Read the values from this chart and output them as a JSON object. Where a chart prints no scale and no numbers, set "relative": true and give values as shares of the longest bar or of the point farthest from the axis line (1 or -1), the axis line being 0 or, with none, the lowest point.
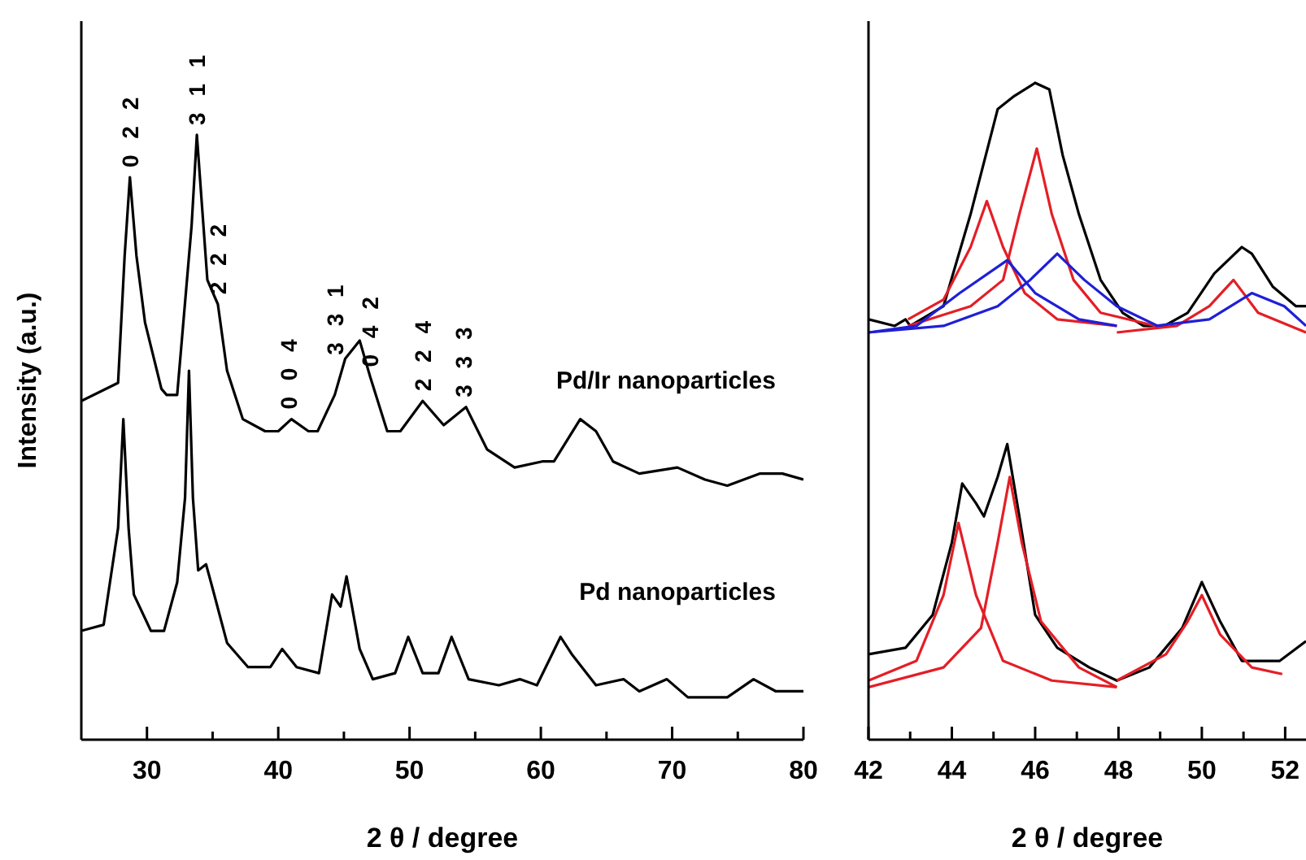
{
  "chart_data": [
    {
      "type": "line",
      "relative": true,
      "xlabel": "2 θ / degree",
      "ylabel": "Intensity (a.u.)",
      "marker": "none",
      "xlim": [
        25,
        80
      ],
      "xticks": [
        30,
        {
          "value": 35,
          "label": null
        },
        40,
        {
          "value": 45,
          "label": null
        },
        50,
        {
          "value": 55,
          "label": null
        },
        60,
        {
          "value": 65,
          "label": null
        },
        70,
        {
          "value": 75,
          "label": null
        },
        80
      ],
      "series": [
        {
          "name": "Pd/Ir nanoparticles",
          "color": "#000000",
          "x": [
            25,
            27.8,
            28.3,
            28.7,
            29.2,
            29.85,
            31.1,
            31.5,
            32.3,
            33.4,
            33.8,
            34.6,
            35.4,
            36.1,
            37.3,
            39.0,
            40.0,
            41.0,
            42.3,
            43.0,
            44.3,
            45.1,
            46.2,
            47.0,
            48.3,
            49.3,
            51.0,
            52.6,
            54.3,
            55.9,
            58.0,
            60.1,
            61.0,
            63.0,
            64.2,
            65.5,
            67.5,
            70.4,
            72.5,
            74.2,
            76.7,
            78.4,
            80
          ],
          "values": [
            0.56,
            0.59,
            0.8,
            0.93,
            0.8,
            0.69,
            0.58,
            0.57,
            0.57,
            0.85,
            1.0,
            0.76,
            0.72,
            0.61,
            0.53,
            0.51,
            0.51,
            0.53,
            0.51,
            0.51,
            0.57,
            0.63,
            0.66,
            0.6,
            0.51,
            0.51,
            0.56,
            0.52,
            0.55,
            0.48,
            0.45,
            0.46,
            0.46,
            0.53,
            0.51,
            0.46,
            0.44,
            0.45,
            0.43,
            0.42,
            0.44,
            0.44,
            0.43
          ]
        },
        {
          "name": "Pd nanoparticles",
          "color": "#000000",
          "x": [
            25,
            26.7,
            27.8,
            28.2,
            28.6,
            29.0,
            30.3,
            31.3,
            32.3,
            32.9,
            33.2,
            33.5,
            33.9,
            34.5,
            35.0,
            36.1,
            37.7,
            39.4,
            40.3,
            41.4,
            43.1,
            44.1,
            44.75,
            45.2,
            46.2,
            47.2,
            48.9,
            49.9,
            51.0,
            52.2,
            53.2,
            54.5,
            56.8,
            58.4,
            59.7,
            61.5,
            62.4,
            64.2,
            66.3,
            67.5,
            69.6,
            71.2,
            74.2,
            76.2,
            77.9,
            80
          ],
          "values": [
            0.18,
            0.19,
            0.35,
            0.53,
            0.35,
            0.24,
            0.18,
            0.18,
            0.26,
            0.4,
            0.61,
            0.4,
            0.28,
            0.29,
            0.25,
            0.16,
            0.12,
            0.12,
            0.15,
            0.12,
            0.11,
            0.24,
            0.22,
            0.27,
            0.15,
            0.1,
            0.11,
            0.17,
            0.11,
            0.11,
            0.17,
            0.1,
            0.09,
            0.1,
            0.09,
            0.17,
            0.14,
            0.09,
            0.1,
            0.08,
            0.1,
            0.07,
            0.07,
            0.1,
            0.08,
            0.08
          ]
        }
      ],
      "annotations": [
        {
          "text": "0 2 2",
          "x": 28.7,
          "y": 0.93
        },
        {
          "text": "3 1 1",
          "x": 33.8,
          "y": 1.0
        },
        {
          "text": "2 2 2",
          "x": 35.4,
          "y": 0.72
        },
        {
          "text": "0 0 4",
          "x": 40.8,
          "y": 0.53
        },
        {
          "text": "3 3 1",
          "x": 44.3,
          "y": 0.62
        },
        {
          "text": "0 4 2",
          "x": 47.0,
          "y": 0.6
        },
        {
          "text": "2 2 4",
          "x": 51.0,
          "y": 0.56
        },
        {
          "text": "3 3 3",
          "x": 54.1,
          "y": 0.55
        }
      ]
    },
    {
      "type": "line",
      "relative": true,
      "xlabel": "2 θ / degree",
      "marker": "none",
      "xlim": [
        42,
        52.5
      ],
      "xticks": [
        42,
        {
          "value": 43,
          "label": null
        },
        44,
        {
          "value": 45,
          "label": null
        },
        46,
        {
          "value": 47,
          "label": null
        },
        48,
        {
          "value": 49,
          "label": null
        },
        50,
        {
          "value": 51,
          "label": null
        },
        52
      ],
      "series": [
        {
          "color": "#000000",
          "x": [
            42.0,
            42.63,
            42.89,
            43.0,
            43.8,
            44.45,
            45.1,
            45.5,
            46.0,
            46.34,
            46.66,
            47.05,
            47.57,
            48.1,
            48.6,
            49.1,
            49.66,
            50.3,
            50.96,
            51.2,
            51.7,
            52.26,
            52.5
          ],
          "values": [
            0.64,
            0.63,
            0.64,
            0.63,
            0.66,
            0.8,
            0.96,
            0.98,
            1.0,
            0.99,
            0.89,
            0.8,
            0.7,
            0.65,
            0.63,
            0.63,
            0.65,
            0.71,
            0.75,
            0.74,
            0.69,
            0.66,
            0.66
          ]
        },
        {
          "color": "#e41e26",
          "x": [
            42.95,
            43.8,
            44.45,
            44.84,
            45.23,
            45.75,
            46.53,
            47.96
          ],
          "values": [
            0.64,
            0.67,
            0.75,
            0.82,
            0.75,
            0.68,
            0.64,
            0.63
          ]
        },
        {
          "color": "#e41e26",
          "x": [
            42.95,
            44.45,
            45.23,
            45.62,
            46.04,
            46.4,
            46.92,
            47.57,
            48.9
          ],
          "values": [
            0.63,
            0.66,
            0.7,
            0.8,
            0.9,
            0.8,
            0.7,
            0.65,
            0.63
          ]
        },
        {
          "color": "#1f1fd6",
          "x": [
            42.0,
            43.15,
            44.19,
            45.33,
            46.0,
            47.05,
            47.96
          ],
          "values": [
            0.62,
            0.63,
            0.68,
            0.73,
            0.68,
            0.64,
            0.63
          ]
        },
        {
          "color": "#1f1fd6",
          "x": [
            42.0,
            43.8,
            45.1,
            45.88,
            46.53,
            47.18,
            47.96,
            48.94
          ],
          "values": [
            0.62,
            0.63,
            0.66,
            0.7,
            0.74,
            0.7,
            0.66,
            0.63
          ]
        },
        {
          "color": "#e41e26",
          "x": [
            47.96,
            49.4,
            50.18,
            50.76,
            51.35,
            52.5
          ],
          "values": [
            0.62,
            0.63,
            0.66,
            0.7,
            0.65,
            0.62
          ]
        },
        {
          "color": "#1f1fd6",
          "x": [
            48.9,
            50.18,
            51.2,
            51.98,
            52.5
          ],
          "values": [
            0.63,
            0.64,
            0.68,
            0.66,
            0.63
          ]
        },
        {
          "color": "#000000",
          "x": [
            42.0,
            42.89,
            43.54,
            44.0,
            44.25,
            44.58,
            44.77,
            45.1,
            45.33,
            45.62,
            46.0,
            46.53,
            47.3,
            47.96,
            48.74,
            49.53,
            50.0,
            50.44,
            50.96,
            51.87,
            52.5
          ],
          "values": [
            0.13,
            0.14,
            0.19,
            0.3,
            0.39,
            0.36,
            0.34,
            0.4,
            0.45,
            0.34,
            0.19,
            0.14,
            0.11,
            0.09,
            0.11,
            0.17,
            0.24,
            0.18,
            0.12,
            0.12,
            0.15
          ]
        },
        {
          "color": "#e41e26",
          "x": [
            42.0,
            43.15,
            43.8,
            44.16,
            44.58,
            45.23,
            46.4,
            47.96
          ],
          "values": [
            0.09,
            0.12,
            0.22,
            0.33,
            0.22,
            0.12,
            0.09,
            0.08
          ]
        },
        {
          "color": "#e41e26",
          "x": [
            42.0,
            43.8,
            44.7,
            45.1,
            45.39,
            45.68,
            46.14,
            47.05,
            47.96
          ],
          "values": [
            0.08,
            0.11,
            0.17,
            0.3,
            0.4,
            0.3,
            0.18,
            0.11,
            0.08
          ]
        },
        {
          "color": "#e41e26",
          "x": [
            47.96,
            49.14,
            49.66,
            50.0,
            50.44,
            51.2,
            51.93
          ],
          "values": [
            0.09,
            0.13,
            0.18,
            0.22,
            0.16,
            0.11,
            0.1
          ]
        }
      ]
    }
  ]
}
